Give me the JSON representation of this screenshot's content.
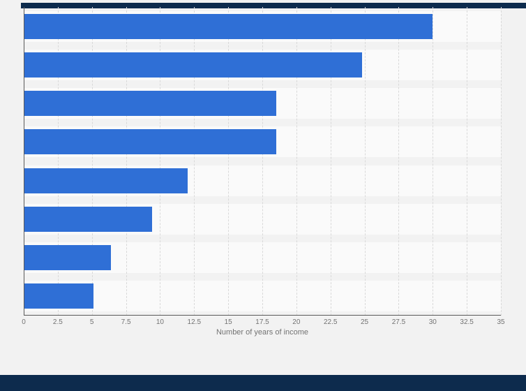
{
  "page": {
    "background": "#f2f2f2",
    "chrome_color": "#0d2b4d"
  },
  "chart_data": {
    "type": "bar",
    "orientation": "horizontal",
    "title": "",
    "xlabel": "Number of years of income",
    "ylabel": "",
    "xlim": [
      0,
      35
    ],
    "xticks": [
      0,
      2.5,
      5,
      7.5,
      10,
      12.5,
      15,
      17.5,
      20,
      22.5,
      25,
      27.5,
      30,
      32.5,
      35
    ],
    "xtick_labels": [
      "0",
      "2.5",
      "5",
      "7.5",
      "10",
      "12.5",
      "15",
      "17.5",
      "20",
      "22.5",
      "25",
      "27.5",
      "30",
      "32.5",
      "35"
    ],
    "values": [
      30,
      24.8,
      18.5,
      18.5,
      12,
      9.4,
      6.4,
      5.1
    ],
    "bar_color": "#2f6fd6",
    "stripe_color": "#fafafa",
    "gridline_color": "#d9d9d9",
    "grid": "vertical-dashed",
    "legend": "none"
  }
}
